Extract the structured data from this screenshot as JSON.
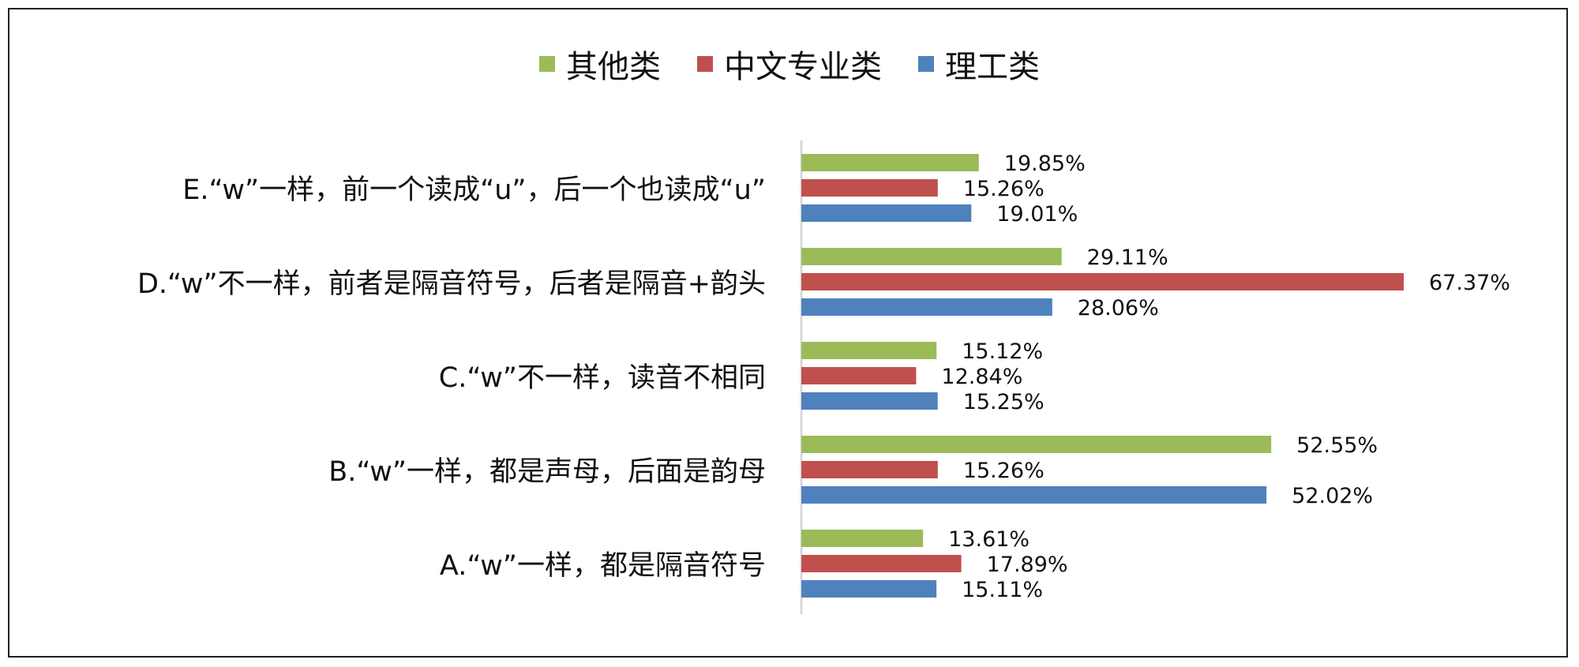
{
  "chart_data": {
    "type": "bar",
    "orientation": "horizontal",
    "categories": [
      "E.“w”一样，前一个读成“u”，后一个也读成“u”",
      "D.“w”不一样，前者是隔音符号，后者是隔音+韵头",
      "C.“w”不一样，读音不相同",
      "B.“w”一样，都是声母，后面是韵母",
      "A.“w”一样，都是隔音符号"
    ],
    "series": [
      {
        "name": "其他类",
        "color": "#9bbb59",
        "values": [
          19.85,
          29.11,
          15.12,
          52.55,
          13.61
        ]
      },
      {
        "name": "中文专业类",
        "color": "#c0504d",
        "values": [
          15.26,
          67.37,
          12.84,
          15.26,
          17.89
        ]
      },
      {
        "name": "理工类",
        "color": "#4f81bd",
        "values": [
          19.01,
          28.06,
          15.25,
          52.02,
          15.11
        ]
      }
    ],
    "value_format": "percent_2dp",
    "legend": {
      "placement": "top-center"
    },
    "grid": false,
    "xlim": [
      0,
      67.37
    ]
  }
}
